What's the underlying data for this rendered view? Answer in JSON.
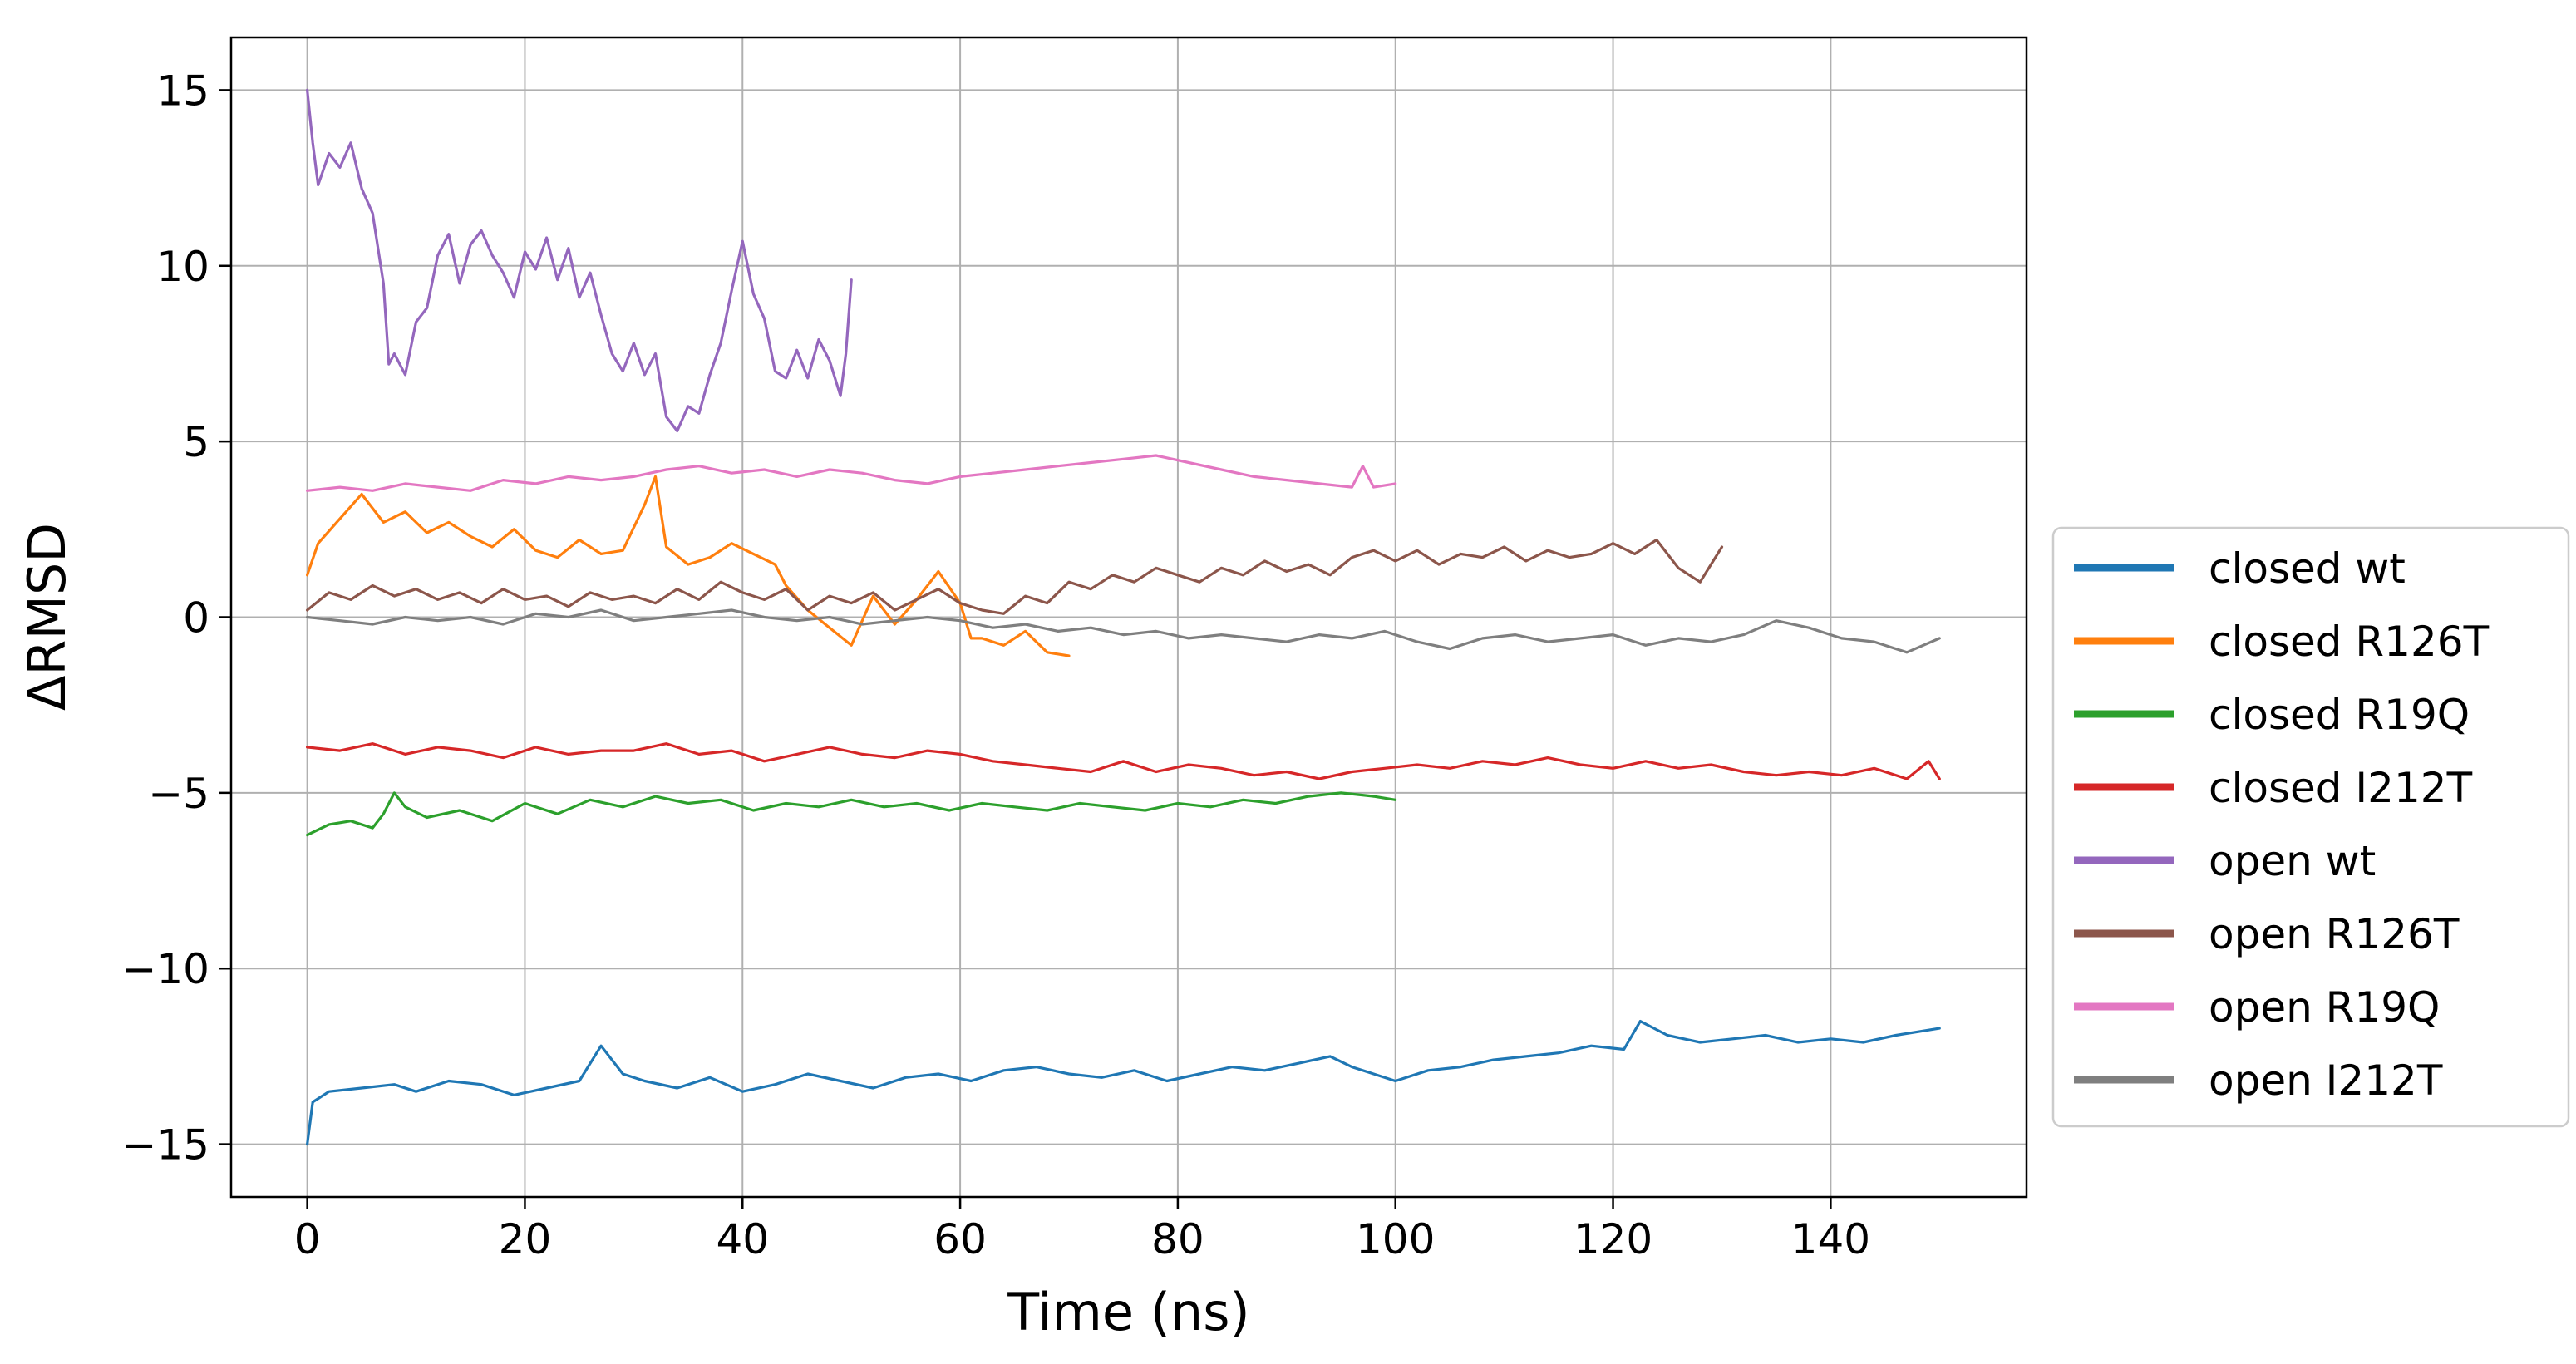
{
  "chart_data": {
    "type": "line",
    "title": "",
    "xlabel": "Time (ns)",
    "ylabel": "ΔRMSD",
    "xlim": [
      -7,
      158
    ],
    "ylim": [
      -16.5,
      16.5
    ],
    "xticks": [
      0,
      20,
      40,
      60,
      80,
      100,
      120,
      140
    ],
    "yticks": [
      -15,
      -10,
      -5,
      0,
      5,
      10,
      15
    ],
    "xtick_labels": [
      "0",
      "20",
      "40",
      "60",
      "80",
      "100",
      "120",
      "140"
    ],
    "ytick_labels": [
      "−15",
      "−10",
      "−5",
      "0",
      "5",
      "10",
      "15"
    ],
    "grid": true,
    "legend_position": "right",
    "series": [
      {
        "name": "closed wt",
        "color": "#1f77b4",
        "x": [
          0,
          0.5,
          2,
          5,
          8,
          10,
          13,
          16,
          19,
          22,
          25,
          27,
          29,
          31,
          34,
          37,
          40,
          43,
          46,
          49,
          52,
          55,
          58,
          61,
          64,
          67,
          70,
          73,
          76,
          79,
          82,
          85,
          88,
          91,
          94,
          96,
          98,
          100,
          103,
          106,
          109,
          112,
          115,
          118,
          121,
          122.5,
          125,
          128,
          131,
          134,
          137,
          140,
          143,
          146,
          148,
          150
        ],
        "y": [
          -15.0,
          -13.8,
          -13.5,
          -13.4,
          -13.3,
          -13.5,
          -13.2,
          -13.3,
          -13.6,
          -13.4,
          -13.2,
          -12.2,
          -13.0,
          -13.2,
          -13.4,
          -13.1,
          -13.5,
          -13.3,
          -13.0,
          -13.2,
          -13.4,
          -13.1,
          -13.0,
          -13.2,
          -12.9,
          -12.8,
          -13.0,
          -13.1,
          -12.9,
          -13.2,
          -13.0,
          -12.8,
          -12.9,
          -12.7,
          -12.5,
          -12.8,
          -13.0,
          -13.2,
          -12.9,
          -12.8,
          -12.6,
          -12.5,
          -12.4,
          -12.2,
          -12.3,
          -11.5,
          -11.9,
          -12.1,
          -12.0,
          -11.9,
          -12.1,
          -12.0,
          -12.1,
          -11.9,
          -11.8,
          -11.7
        ]
      },
      {
        "name": "closed R126T",
        "color": "#ff7f0e",
        "x": [
          0,
          1,
          3,
          5,
          7,
          9,
          11,
          13,
          15,
          17,
          19,
          21,
          23,
          25,
          27,
          29,
          31,
          32,
          33,
          35,
          37,
          39,
          41,
          43,
          44,
          46,
          48,
          50,
          52,
          54,
          56,
          58,
          60,
          61,
          62,
          64,
          66,
          68,
          70
        ],
        "y": [
          1.2,
          2.1,
          2.8,
          3.5,
          2.7,
          3.0,
          2.4,
          2.7,
          2.3,
          2.0,
          2.5,
          1.9,
          1.7,
          2.2,
          1.8,
          1.9,
          3.2,
          4.0,
          2.0,
          1.5,
          1.7,
          2.1,
          1.8,
          1.5,
          0.9,
          0.2,
          -0.3,
          -0.8,
          0.6,
          -0.2,
          0.5,
          1.3,
          0.4,
          -0.6,
          -0.6,
          -0.8,
          -0.4,
          -1.0,
          -1.1
        ]
      },
      {
        "name": "closed R19Q",
        "color": "#2ca02c",
        "x": [
          0,
          2,
          4,
          6,
          7,
          8,
          9,
          11,
          14,
          17,
          20,
          23,
          26,
          29,
          32,
          35,
          38,
          41,
          44,
          47,
          50,
          53,
          56,
          59,
          62,
          65,
          68,
          71,
          74,
          77,
          80,
          83,
          86,
          89,
          92,
          95,
          98,
          100
        ],
        "y": [
          -6.2,
          -5.9,
          -5.8,
          -6.0,
          -5.6,
          -5.0,
          -5.4,
          -5.7,
          -5.5,
          -5.8,
          -5.3,
          -5.6,
          -5.2,
          -5.4,
          -5.1,
          -5.3,
          -5.2,
          -5.5,
          -5.3,
          -5.4,
          -5.2,
          -5.4,
          -5.3,
          -5.5,
          -5.3,
          -5.4,
          -5.5,
          -5.3,
          -5.4,
          -5.5,
          -5.3,
          -5.4,
          -5.2,
          -5.3,
          -5.1,
          -5.0,
          -5.1,
          -5.2
        ]
      },
      {
        "name": "closed I212T",
        "color": "#d62728",
        "x": [
          0,
          3,
          6,
          9,
          12,
          15,
          18,
          21,
          24,
          27,
          30,
          33,
          36,
          39,
          42,
          45,
          48,
          51,
          54,
          57,
          60,
          63,
          66,
          69,
          72,
          75,
          78,
          81,
          84,
          87,
          90,
          93,
          96,
          99,
          102,
          105,
          108,
          111,
          114,
          117,
          120,
          123,
          126,
          129,
          132,
          135,
          138,
          141,
          144,
          147,
          149,
          150
        ],
        "y": [
          -3.7,
          -3.8,
          -3.6,
          -3.9,
          -3.7,
          -3.8,
          -4.0,
          -3.7,
          -3.9,
          -3.8,
          -3.8,
          -3.6,
          -3.9,
          -3.8,
          -4.1,
          -3.9,
          -3.7,
          -3.9,
          -4.0,
          -3.8,
          -3.9,
          -4.1,
          -4.2,
          -4.3,
          -4.4,
          -4.1,
          -4.4,
          -4.2,
          -4.3,
          -4.5,
          -4.4,
          -4.6,
          -4.4,
          -4.3,
          -4.2,
          -4.3,
          -4.1,
          -4.2,
          -4.0,
          -4.2,
          -4.3,
          -4.1,
          -4.3,
          -4.2,
          -4.4,
          -4.5,
          -4.4,
          -4.5,
          -4.3,
          -4.6,
          -4.1,
          -4.6
        ]
      },
      {
        "name": "open wt",
        "color": "#9467bd",
        "x": [
          0,
          0.5,
          1,
          2,
          3,
          4,
          5,
          6,
          7,
          7.5,
          8,
          9,
          10,
          11,
          12,
          13,
          14,
          15,
          16,
          17,
          18,
          19,
          20,
          21,
          22,
          23,
          24,
          25,
          26,
          27,
          28,
          29,
          30,
          31,
          32,
          33,
          34,
          35,
          36,
          37,
          38,
          39,
          40,
          41,
          42,
          43,
          44,
          45,
          46,
          47,
          48,
          49,
          49.5,
          50
        ],
        "y": [
          15.0,
          13.5,
          12.3,
          13.2,
          12.8,
          13.5,
          12.2,
          11.5,
          9.5,
          7.2,
          7.5,
          6.9,
          8.4,
          8.8,
          10.3,
          10.9,
          9.5,
          10.6,
          11.0,
          10.3,
          9.8,
          9.1,
          10.4,
          9.9,
          10.8,
          9.6,
          10.5,
          9.1,
          9.8,
          8.6,
          7.5,
          7.0,
          7.8,
          6.9,
          7.5,
          5.7,
          5.3,
          6.0,
          5.8,
          6.9,
          7.8,
          9.3,
          10.7,
          9.2,
          8.5,
          7.0,
          6.8,
          7.6,
          6.8,
          7.9,
          7.3,
          6.3,
          7.5,
          9.6
        ]
      },
      {
        "name": "open R126T",
        "color": "#8c564b",
        "x": [
          0,
          2,
          4,
          6,
          8,
          10,
          12,
          14,
          16,
          18,
          20,
          22,
          24,
          26,
          28,
          30,
          32,
          34,
          36,
          38,
          40,
          42,
          44,
          46,
          48,
          50,
          52,
          54,
          56,
          58,
          60,
          62,
          64,
          66,
          68,
          70,
          72,
          74,
          76,
          78,
          80,
          82,
          84,
          86,
          88,
          90,
          92,
          94,
          96,
          98,
          100,
          102,
          104,
          106,
          108,
          110,
          112,
          114,
          116,
          118,
          120,
          122,
          124,
          126,
          128,
          130
        ],
        "y": [
          0.2,
          0.7,
          0.5,
          0.9,
          0.6,
          0.8,
          0.5,
          0.7,
          0.4,
          0.8,
          0.5,
          0.6,
          0.3,
          0.7,
          0.5,
          0.6,
          0.4,
          0.8,
          0.5,
          1.0,
          0.7,
          0.5,
          0.8,
          0.2,
          0.6,
          0.4,
          0.7,
          0.2,
          0.5,
          0.8,
          0.4,
          0.2,
          0.1,
          0.6,
          0.4,
          1.0,
          0.8,
          1.2,
          1.0,
          1.4,
          1.2,
          1.0,
          1.4,
          1.2,
          1.6,
          1.3,
          1.5,
          1.2,
          1.7,
          1.9,
          1.6,
          1.9,
          1.5,
          1.8,
          1.7,
          2.0,
          1.6,
          1.9,
          1.7,
          1.8,
          2.1,
          1.8,
          2.2,
          1.4,
          1.0,
          2.0
        ]
      },
      {
        "name": "open R19Q",
        "color": "#e377c2",
        "x": [
          0,
          3,
          6,
          9,
          12,
          15,
          18,
          21,
          24,
          27,
          30,
          33,
          36,
          39,
          42,
          45,
          48,
          51,
          54,
          57,
          60,
          63,
          66,
          69,
          72,
          75,
          78,
          81,
          84,
          87,
          90,
          93,
          96,
          97,
          98,
          100
        ],
        "y": [
          3.6,
          3.7,
          3.6,
          3.8,
          3.7,
          3.6,
          3.9,
          3.8,
          4.0,
          3.9,
          4.0,
          4.2,
          4.3,
          4.1,
          4.2,
          4.0,
          4.2,
          4.1,
          3.9,
          3.8,
          4.0,
          4.1,
          4.2,
          4.3,
          4.4,
          4.5,
          4.6,
          4.4,
          4.2,
          4.0,
          3.9,
          3.8,
          3.7,
          4.3,
          3.7,
          3.8
        ]
      },
      {
        "name": "open I212T",
        "color": "#7f7f7f",
        "x": [
          0,
          3,
          6,
          9,
          12,
          15,
          18,
          21,
          24,
          27,
          30,
          33,
          36,
          39,
          42,
          45,
          48,
          51,
          54,
          57,
          60,
          63,
          66,
          69,
          72,
          75,
          78,
          81,
          84,
          87,
          90,
          93,
          96,
          99,
          102,
          105,
          108,
          111,
          114,
          117,
          120,
          123,
          126,
          129,
          132,
          135,
          138,
          141,
          144,
          147,
          150
        ],
        "y": [
          0.0,
          -0.1,
          -0.2,
          0.0,
          -0.1,
          0.0,
          -0.2,
          0.1,
          0.0,
          0.2,
          -0.1,
          0.0,
          0.1,
          0.2,
          0.0,
          -0.1,
          0.0,
          -0.2,
          -0.1,
          0.0,
          -0.1,
          -0.3,
          -0.2,
          -0.4,
          -0.3,
          -0.5,
          -0.4,
          -0.6,
          -0.5,
          -0.6,
          -0.7,
          -0.5,
          -0.6,
          -0.4,
          -0.7,
          -0.9,
          -0.6,
          -0.5,
          -0.7,
          -0.6,
          -0.5,
          -0.8,
          -0.6,
          -0.7,
          -0.5,
          -0.1,
          -0.3,
          -0.6,
          -0.7,
          -1.0,
          -0.6
        ]
      }
    ]
  }
}
